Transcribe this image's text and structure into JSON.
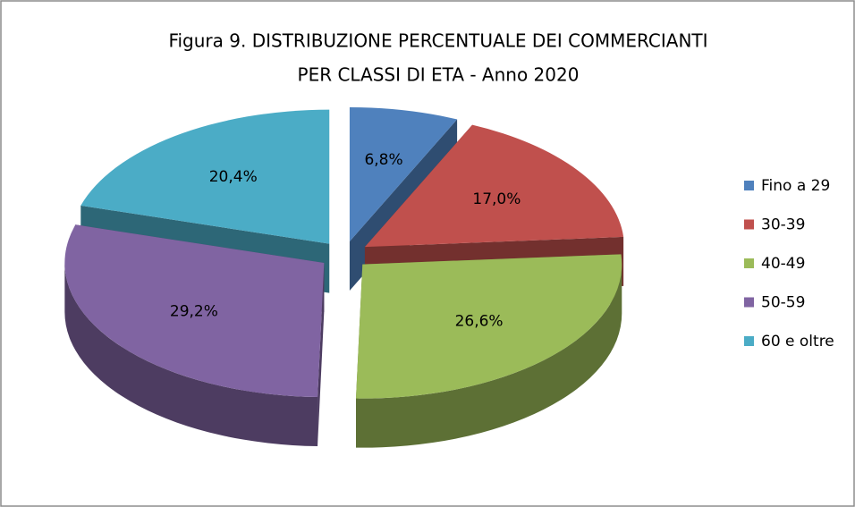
{
  "chart_data": {
    "type": "pie",
    "title": [
      "Figura 9. DISTRIBUZIONE PERCENTUALE DEI COMMERCIANTI",
      "PER CLASSI DI ETA - Anno 2020"
    ],
    "categories": [
      "Fino a 29",
      "30-39",
      "40-49",
      "50-59",
      "60 e oltre"
    ],
    "values": [
      6.8,
      17.0,
      26.6,
      29.2,
      20.4
    ],
    "value_labels": [
      "6,8%",
      "17,0%",
      "26,6%",
      "29,2%",
      "20,4%"
    ],
    "colors": [
      "#4f81bd",
      "#c0504d",
      "#9bbb59",
      "#8064a2",
      "#4bacc6"
    ],
    "legend": "right"
  }
}
